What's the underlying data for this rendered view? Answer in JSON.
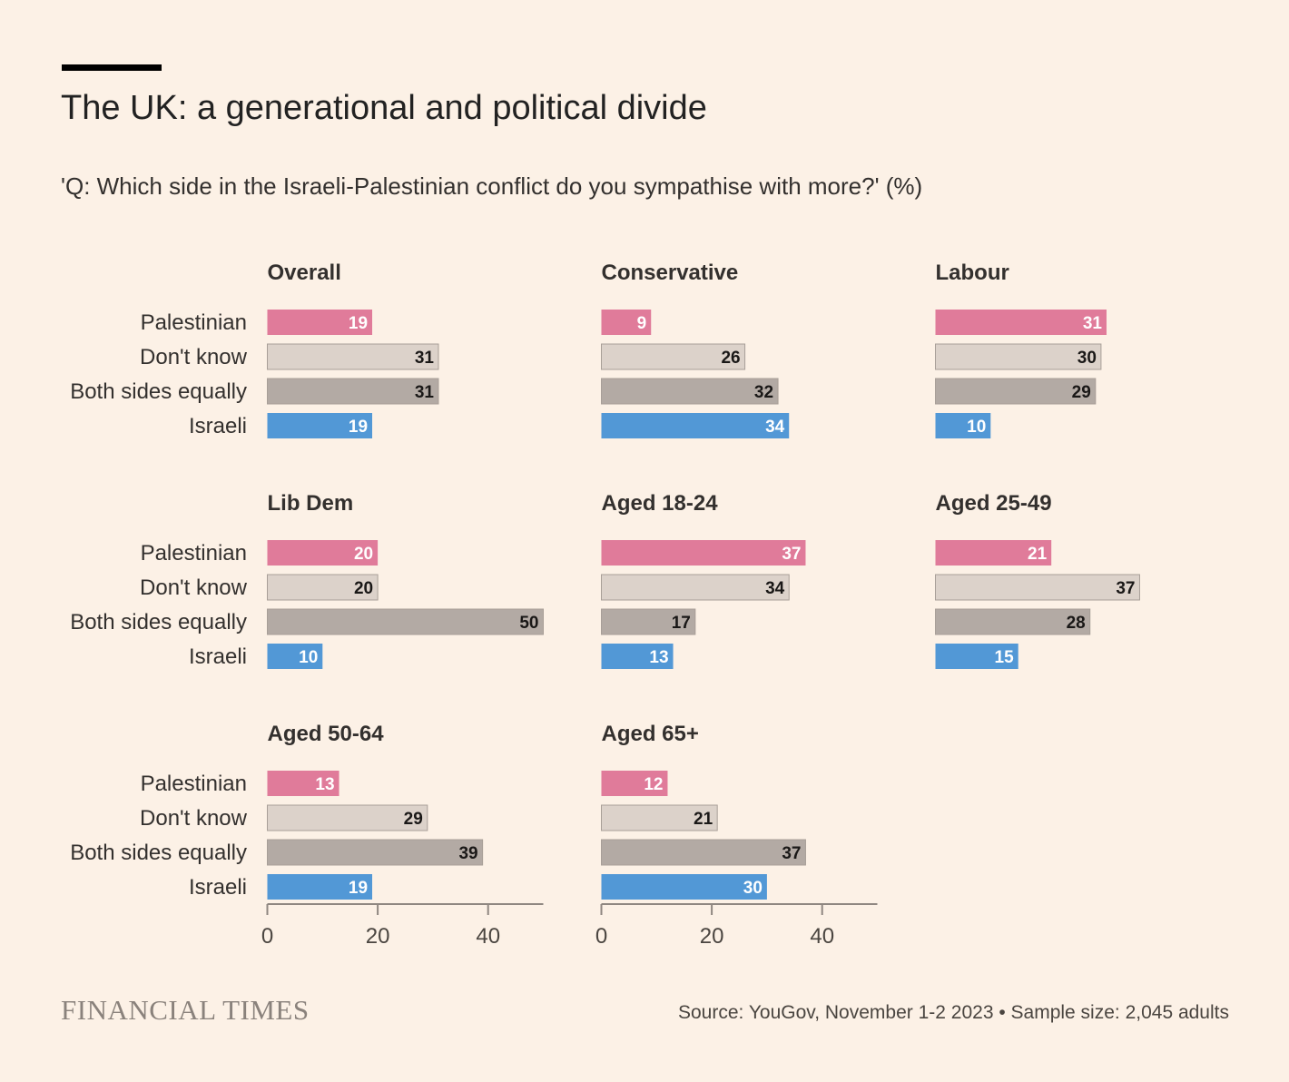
{
  "title": "The UK: a generational and political divide",
  "subtitle": "'Q: Which side in the Israeli-Palestinian conflict do you sympathise with more?' (%)",
  "brand": "FINANCIAL TIMES",
  "source": "Source: YouGov, November 1-2 2023 • Sample size: 2,045 adults",
  "colors": {
    "background": "#fcf1e6",
    "Palestinian": "#e07b9a",
    "Don't know": "#dcd2ca",
    "Both sides equally": "#b3aaa4",
    "Israeli": "#5298d6"
  },
  "chart_data": {
    "type": "bar",
    "orientation": "horizontal",
    "title": "The UK: a generational and political divide",
    "unit": "%",
    "categories": [
      "Palestinian",
      "Don't know",
      "Both sides equally",
      "Israeli"
    ],
    "xlim": [
      0,
      50
    ],
    "xticks": [
      0,
      20,
      40
    ],
    "panels": [
      {
        "name": "Overall",
        "values": [
          19,
          31,
          31,
          19
        ]
      },
      {
        "name": "Conservative",
        "values": [
          9,
          26,
          32,
          34
        ]
      },
      {
        "name": "Labour",
        "values": [
          31,
          30,
          29,
          10
        ]
      },
      {
        "name": "Lib Dem",
        "values": [
          20,
          20,
          50,
          10
        ]
      },
      {
        "name": "Aged 18-24",
        "values": [
          37,
          34,
          17,
          13
        ]
      },
      {
        "name": "Aged 25-49",
        "values": [
          21,
          37,
          28,
          15
        ]
      },
      {
        "name": "Aged 50-64",
        "values": [
          13,
          29,
          39,
          19
        ]
      },
      {
        "name": "Aged 65+",
        "values": [
          12,
          21,
          37,
          30
        ]
      }
    ]
  }
}
